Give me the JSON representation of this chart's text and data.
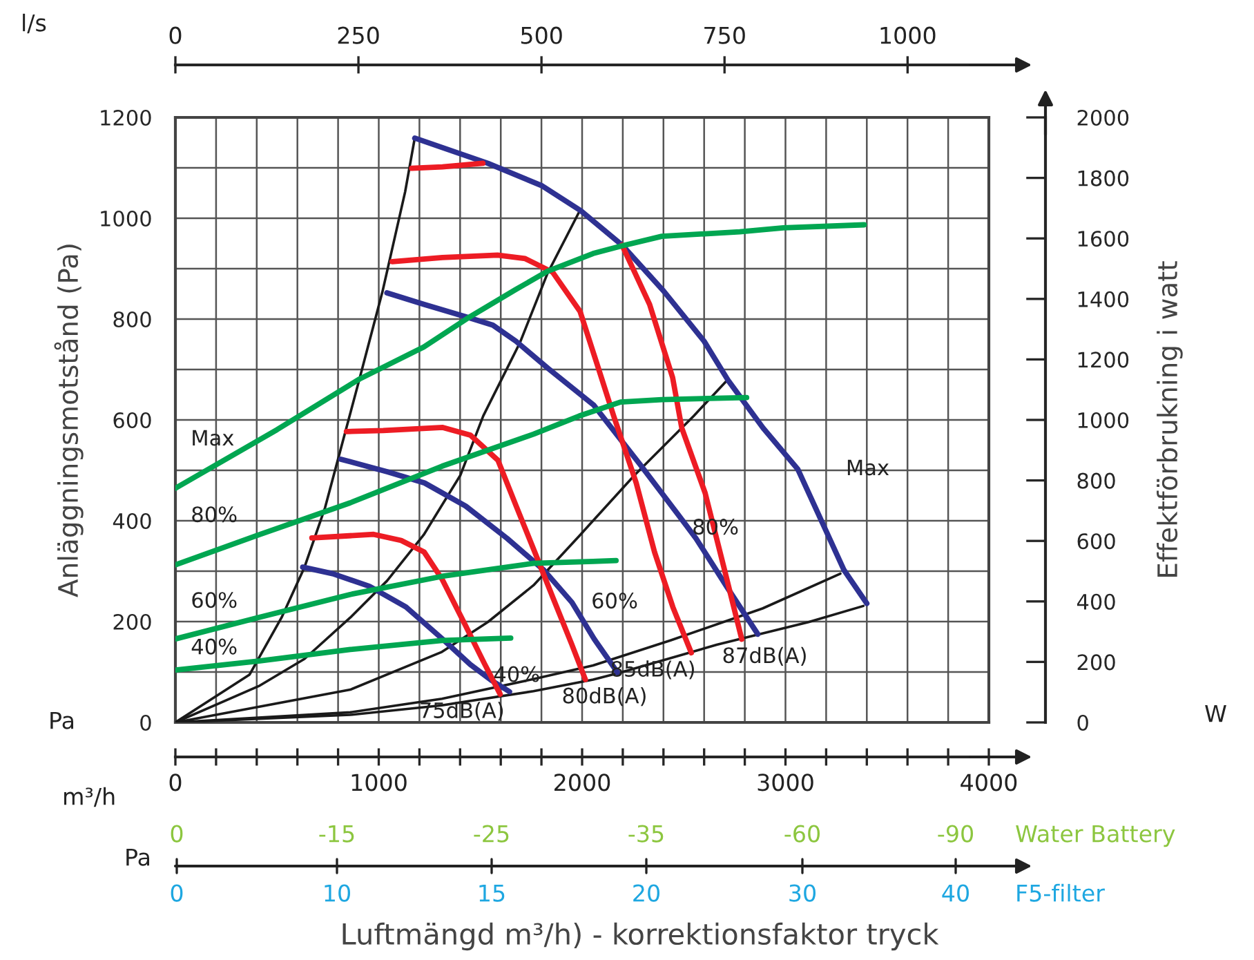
{
  "chart_data": {
    "type": "line",
    "xlabel": "Luftmängd m³/h) - korrektionsfaktor tryck",
    "ylabel": "Anläggningsmotstånd (Pa)",
    "y2label": "Effektförbrukning i watt",
    "x2label": "l/s",
    "annotations": [
      "Pa",
      "W",
      "m³/h",
      "Pa",
      "Water Battery",
      "0",
      "-15",
      "-25",
      "-35",
      "-60",
      "-90",
      "F5-filter",
      "0",
      "10",
      "15",
      "20",
      "30",
      "40"
    ],
    "xlim": [
      0,
      4000
    ],
    "xticks": [
      0,
      {
        "value": 200,
        "label": null
      },
      {
        "value": 400,
        "label": null
      },
      {
        "value": 600,
        "label": null
      },
      {
        "value": 800,
        "label": null
      },
      1000,
      {
        "value": 1200,
        "label": null
      },
      {
        "value": 1400,
        "label": null
      },
      {
        "value": 1600,
        "label": null
      },
      {
        "value": 1800,
        "label": null
      },
      2000,
      {
        "value": 2200,
        "label": null
      },
      {
        "value": 2400,
        "label": null
      },
      {
        "value": 2600,
        "label": null
      },
      {
        "value": 2800,
        "label": null
      },
      3000,
      {
        "value": 3200,
        "label": null
      },
      {
        "value": 3400,
        "label": null
      },
      {
        "value": 3600,
        "label": null
      },
      {
        "value": 3800,
        "label": null
      },
      4000
    ],
    "x2lim": [
      0,
      1111
    ],
    "x2ticks": [
      0,
      250,
      500,
      750,
      1000
    ],
    "ylim": [
      0,
      1200
    ],
    "yticks": [
      0,
      {
        "value": 100,
        "label": null
      },
      200,
      {
        "value": 300,
        "label": null
      },
      400,
      {
        "value": 500,
        "label": null
      },
      600,
      {
        "value": 700,
        "label": null
      },
      800,
      {
        "value": 900,
        "label": null
      },
      1000,
      {
        "value": 1100,
        "label": null
      },
      1200
    ],
    "y2lim": [
      0,
      2000
    ],
    "y2ticks": [
      0,
      200,
      400,
      600,
      800,
      1000,
      1200,
      1400,
      1600,
      1800,
      2000
    ],
    "grid": true,
    "legend": false,
    "marker": "none",
    "line_style": "solid",
    "series": [
      {
        "color": "#1a1a1a",
        "x": [
          0,
          365,
          522,
          635,
          736,
          905,
          1018,
          1130,
          1177
        ],
        "values": [
          0,
          95,
          208,
          308,
          426,
          681,
          854,
          1053,
          1159
        ]
      },
      {
        "color": "#1a1a1a",
        "x": [
          0,
          410,
          635,
          860,
          1041,
          1221,
          1401,
          1514,
          1694,
          1829,
          1986
        ],
        "values": [
          0,
          72,
          126,
          208,
          281,
          372,
          490,
          608,
          753,
          890,
          1013
        ]
      },
      {
        "color": "#1a1a1a",
        "x": [
          0,
          860,
          1311,
          1536,
          1761,
          1986,
          2257,
          2549,
          2707
        ],
        "values": [
          0,
          65,
          140,
          199,
          272,
          370,
          490,
          608,
          676
        ]
      },
      {
        "color": "#1a1a1a",
        "x": [
          0,
          860,
          1311,
          1761,
          2054,
          2437,
          2887,
          3270
        ],
        "values": [
          0,
          20,
          47,
          86,
          113,
          163,
          226,
          295
        ]
      },
      {
        "color": "#1a1a1a",
        "x": [
          0,
          860,
          1311,
          1761,
          2054,
          2189,
          2662,
          3113,
          3383
        ],
        "values": [
          0,
          15,
          34,
          62,
          85,
          99,
          154,
          199,
          231
        ]
      },
      {
        "name": "Max",
        "color": "#00a651",
        "axis": "y2",
        "x": [
          0,
          500,
          905,
          1221,
          1446,
          1671,
          1829,
          2054,
          2189,
          2392,
          2775,
          2989,
          3387
        ],
        "values": [
          774,
          968,
          1135,
          1241,
          1340,
          1430,
          1491,
          1550,
          1574,
          1607,
          1622,
          1635,
          1645
        ]
      },
      {
        "name": "80%",
        "color": "#00a651",
        "axis": "y2",
        "x": [
          0,
          410,
          860,
          1311,
          1761,
          1986,
          2189,
          2392,
          2809
        ],
        "values": [
          521,
          620,
          726,
          847,
          953,
          1013,
          1059,
          1067,
          1074
        ]
      },
      {
        "name": "60%",
        "color": "#00a651",
        "axis": "y2",
        "x": [
          0,
          410,
          860,
          1311,
          1761,
          2054,
          2167
        ],
        "values": [
          276,
          347,
          423,
          483,
          526,
          532,
          535
        ]
      },
      {
        "name": "40%",
        "color": "#00a651",
        "axis": "y2",
        "x": [
          0,
          410,
          860,
          1311,
          1649
        ],
        "values": [
          173,
          203,
          241,
          271,
          279
        ]
      },
      {
        "name": "Max",
        "color": "#2e3192",
        "x": [
          1177,
          1536,
          1800,
          1993,
          2196,
          2400,
          2600,
          2717,
          2890,
          3061,
          3288,
          3400
        ],
        "values": [
          1159,
          1109,
          1065,
          1015,
          947,
          856,
          756,
          679,
          584,
          502,
          302,
          236
        ]
      },
      {
        "name": "80%",
        "color": "#2e3192",
        "x": [
          1040,
          1223,
          1449,
          1561,
          1675,
          1833,
          2058,
          2286,
          2467,
          2560,
          2718,
          2864
        ],
        "values": [
          852,
          829,
          802,
          788,
          756,
          702,
          629,
          511,
          415,
          365,
          265,
          175
        ]
      },
      {
        "name": "60%",
        "color": "#2e3192",
        "x": [
          814,
          1044,
          1225,
          1428,
          1631,
          1812,
          1950,
          2060,
          2176
        ],
        "values": [
          522,
          497,
          475,
          429,
          365,
          302,
          238,
          165,
          98
        ]
      },
      {
        "name": "40%",
        "color": "#2e3192",
        "x": [
          626,
          773,
          954,
          1134,
          1315,
          1450,
          1552,
          1643
        ],
        "values": [
          308,
          295,
          270,
          229,
          165,
          115,
          84,
          61
        ]
      },
      {
        "name": "75dB(A)",
        "color": "#ed1c24",
        "x": [
          671,
          975,
          1110,
          1223,
          1313,
          1428,
          1518,
          1597
        ],
        "values": [
          366,
          373,
          361,
          338,
          283,
          191,
          118,
          56
        ]
      },
      {
        "name": "80dB(A)",
        "color": "#ed1c24",
        "x": [
          841,
          1022,
          1315,
          1450,
          1586,
          1676,
          1767,
          1857,
          1948,
          2016
        ],
        "values": [
          577,
          579,
          585,
          570,
          520,
          429,
          338,
          247,
          156,
          85
        ]
      },
      {
        "name": "85dB(A)",
        "color": "#ed1c24",
        "x": [
          1066,
          1313,
          1584,
          1720,
          1855,
          1990,
          2082,
          2155,
          2266,
          2356,
          2446,
          2537
        ],
        "values": [
          914,
          922,
          927,
          920,
          893,
          815,
          700,
          608,
          475,
          338,
          229,
          138
        ]
      },
      {
        "name": "87dB(A)",
        "color": "#ed1c24",
        "x": [
          1162,
          1313,
          1512,
          null,
          2196,
          2332,
          2445,
          2490,
          2605,
          2695,
          2785
        ],
        "values": [
          1099,
          1102,
          1109,
          null,
          947,
          829,
          684,
          584,
          455,
          311,
          165
        ]
      }
    ]
  }
}
